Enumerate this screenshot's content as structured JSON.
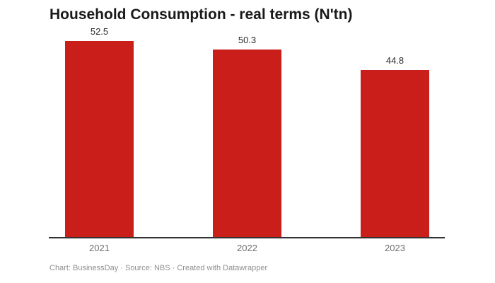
{
  "header": {
    "title": "Household Consumption - real terms (N'tn)"
  },
  "footer": {
    "text": "Chart: BusinessDay · Source: NBS · Created with Datawrapper"
  },
  "colors": {
    "bar": "#c91e19",
    "baseline": "#333333",
    "value_label": "#2b2b2b",
    "tick_label": "#6e6e6e",
    "footer_text": "#8f8f8f",
    "background": "#ffffff"
  },
  "chart_data": {
    "type": "bar",
    "title": "Household Consumption - real terms (N'tn)",
    "categories": [
      "2021",
      "2022",
      "2023"
    ],
    "values": [
      52.5,
      50.3,
      44.8
    ],
    "value_labels": [
      "52.5",
      "50.3",
      "44.8"
    ],
    "xlabel": "",
    "ylabel": "",
    "ylim": [
      0,
      56
    ],
    "grid": false,
    "legend": false,
    "bar_color": "#c91e19",
    "baseline_shown": true,
    "y_axis_shown": false
  }
}
